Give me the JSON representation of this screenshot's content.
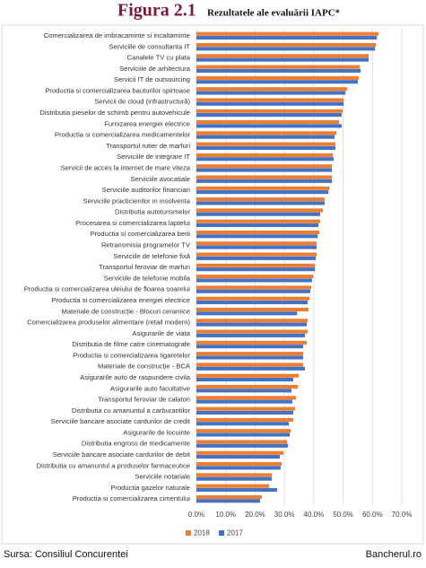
{
  "chart_data": {
    "type": "bar",
    "orientation": "horizontal",
    "title": "Figura 2.1",
    "subtitle": "Rezultatele ale evaluării IAPC*",
    "categories": [
      "Comercializarea de imbracaminte si incaltaminte",
      "Serviciile de consultanta IT",
      "Canalele TV cu plata",
      "Serviciile de arhitectura",
      "Servicii IT de outsourcing",
      "Productia si comercializarea bauturilor spirtoase",
      "Servicii de cloud (infrastructură)",
      "Distributia pieselor de schimb pentru autovehicule",
      "Furnizarea energiei electrice",
      "Productia si comercializarea medicamentelor",
      "Transportul rutier de marfuri",
      "Serviciile de integrare IT",
      "Servicii de acces la internet de mare viteza",
      "Serviciile avocatiale",
      "Serviciile auditorilor financiari",
      "Serviciile practicienilor in insolventa",
      "Distributia autoturismelor",
      "Procesarea si comercializarea laptelui",
      "Productia si comercializarea berii",
      "Retransmisia programelor TV",
      "Serviciile de telefonie fixă",
      "Transportul feroviar de marfuri",
      "Serviciile de telefonie mobila",
      "Productia si comercializarea uleiului de floarea soarelui",
      "Productia si comercializarea energiei electrice",
      "Materiale de construcție - Blocuri ceramice",
      "Comercializarea produselor alimentare (retail modern)",
      "Asigurarile de viata",
      "Distributia de filme catre cinematografe",
      "Productia si comercializarea tigaretelor",
      "Materiale de construcție - BCA",
      "Asigurarile auto de raspundere civila",
      "Asigurarile auto facultative",
      "Transportul feroviar de calatori",
      "Distributia cu amanuntul a carburantilor",
      "Serviciile bancare asociate cardurilor de credit",
      "Asigurarile de locuinte",
      "Distributia engross de medicamente",
      "Serviciile bancare asociate cardurilor de debit",
      "Distributia cu amanuntul a produselor farmaceutice",
      "Serviciile notariale",
      "Productia gazelor naturale",
      "Productia si comercializarea cimentului"
    ],
    "series": [
      {
        "name": "2018",
        "color": "#ed7d31",
        "values": [
          62.1,
          61.2,
          58.7,
          55.7,
          55.3,
          51.4,
          50.2,
          49.8,
          48.6,
          47.7,
          47.4,
          46.5,
          46.2,
          46.2,
          45.3,
          43.7,
          43.1,
          42.2,
          41.9,
          41.0,
          41.0,
          40.4,
          39.8,
          39.1,
          38.5,
          38.2,
          37.9,
          37.9,
          37.6,
          36.4,
          36.4,
          34.9,
          34.6,
          33.9,
          33.6,
          33.0,
          32.1,
          30.9,
          29.7,
          29.1,
          25.7,
          24.8,
          22.3
        ]
      },
      {
        "name": "2017",
        "color": "#4472c4",
        "values": [
          61.5,
          60.9,
          58.7,
          56.0,
          55.0,
          50.8,
          50.2,
          49.5,
          49.5,
          47.1,
          47.4,
          46.8,
          46.2,
          46.2,
          45.0,
          43.7,
          42.2,
          41.6,
          41.3,
          41.0,
          40.7,
          40.4,
          39.4,
          38.8,
          37.9,
          34.3,
          37.6,
          37.0,
          36.4,
          36.4,
          37.0,
          33.0,
          32.4,
          32.7,
          33.0,
          31.5,
          31.8,
          31.2,
          28.4,
          28.7,
          25.7,
          27.5,
          21.7
        ]
      }
    ],
    "xlim": [
      0,
      70
    ],
    "xticks": [
      {
        "value": 0,
        "label": "0.0%"
      },
      {
        "value": 10,
        "label": "10.0%"
      },
      {
        "value": 20,
        "label": "20.0%"
      },
      {
        "value": 30,
        "label": "30.0%"
      },
      {
        "value": 40,
        "label": "40.0%"
      },
      {
        "value": 50,
        "label": "50.0%"
      },
      {
        "value": 60,
        "label": "60.0%"
      },
      {
        "value": 70,
        "label": "70.0%"
      }
    ],
    "grid": true,
    "legend": "bottom"
  },
  "footer": {
    "source": "Sursa: Consiliul Concurentei",
    "site": "Bancherul.ro"
  }
}
